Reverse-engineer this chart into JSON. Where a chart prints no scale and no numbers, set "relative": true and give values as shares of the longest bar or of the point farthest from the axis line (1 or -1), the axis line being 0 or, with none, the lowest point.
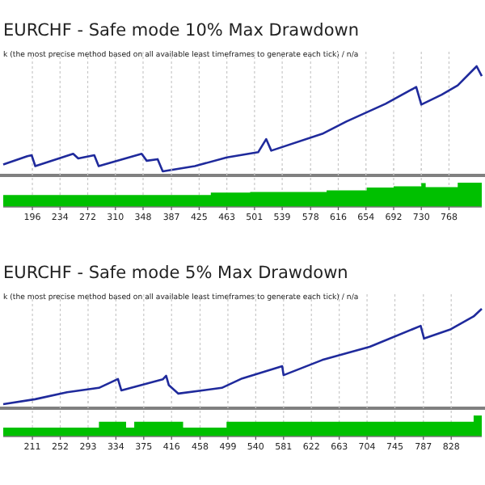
{
  "chart_data": [
    {
      "type": "line",
      "title": "EURCHF - Safe mode 10% Max Drawdown",
      "subtitle": "k (the most precise method based on all available least timeframes to generate each tick) / n/a",
      "relative": true,
      "grid": "x",
      "tick_labels": false,
      "xlim": [
        156,
        813
      ],
      "xticks": [
        196,
        234,
        272,
        310,
        348,
        387,
        425,
        463,
        501,
        539,
        578,
        616,
        654,
        692,
        730,
        768
      ],
      "series": [
        {
          "color": "#1f2a9c",
          "x": [
            156,
            189,
            195,
            200,
            252,
            259,
            281,
            287,
            346,
            353,
            368,
            375,
            419,
            463,
            506,
            517,
            524,
            594,
            627,
            681,
            723,
            730,
            758,
            780,
            806,
            813
          ],
          "values": [
            0.066,
            0.145,
            0.154,
            0.05,
            0.167,
            0.123,
            0.154,
            0.05,
            0.167,
            0.101,
            0.116,
            0,
            0.05,
            0.132,
            0.182,
            0.307,
            0.197,
            0.357,
            0.474,
            0.643,
            0.803,
            0.636,
            0.73,
            0.818,
            1,
            0.906
          ]
        }
      ]
    },
    {
      "type": "area",
      "relative": true,
      "grid": "x",
      "xlim": [
        156,
        813
      ],
      "xticks": [
        196,
        234,
        272,
        310,
        348,
        387,
        425,
        463,
        501,
        539,
        578,
        616,
        654,
        692,
        730,
        768
      ],
      "series": [
        {
          "color": "#00c000",
          "x": [
            156,
            441,
            441,
            495,
            495,
            600,
            600,
            655,
            655,
            692,
            692,
            730,
            730,
            736,
            736,
            780,
            780,
            813
          ],
          "values": [
            0.49,
            0.49,
            0.59,
            0.59,
            0.62,
            0.62,
            0.68,
            0.68,
            0.8,
            0.8,
            0.85,
            0.85,
            0.98,
            0.98,
            0.82,
            0.82,
            1,
            1
          ]
        }
      ]
    },
    {
      "type": "line",
      "title": "EURCHF - Safe mode 5% Max Drawdown",
      "subtitle": "k (the most precise method based on all available least timeframes to generate each tick) / n/a",
      "relative": true,
      "grid": "x",
      "tick_labels": false,
      "xlim": [
        168,
        873
      ],
      "xticks": [
        211,
        252,
        293,
        334,
        375,
        416,
        458,
        499,
        540,
        581,
        622,
        663,
        704,
        745,
        787,
        828
      ],
      "series": [
        {
          "color": "#1f2a9c",
          "x": [
            168,
            215,
            262,
            309,
            337,
            342,
            403,
            408,
            412,
            426,
            490,
            520,
            579,
            581,
            638,
            708,
            783,
            788,
            826,
            861,
            873
          ],
          "values": [
            0,
            0.052,
            0.125,
            0.171,
            0.264,
            0.145,
            0.26,
            0.298,
            0.199,
            0.111,
            0.171,
            0.27,
            0.398,
            0.304,
            0.463,
            0.602,
            0.821,
            0.688,
            0.781,
            0.92,
            1
          ]
        }
      ]
    },
    {
      "type": "area",
      "relative": true,
      "grid": "x",
      "xlim": [
        168,
        873
      ],
      "xticks": [
        211,
        252,
        293,
        334,
        375,
        416,
        458,
        499,
        540,
        581,
        622,
        663,
        704,
        745,
        787,
        828
      ],
      "series": [
        {
          "color": "#00c000",
          "x": [
            168,
            309,
            309,
            349,
            349,
            361,
            361,
            433,
            433,
            497,
            497,
            861,
            861,
            873
          ],
          "values": [
            0.42,
            0.42,
            0.7,
            0.7,
            0.42,
            0.42,
            0.7,
            0.7,
            0.42,
            0.42,
            0.7,
            0.7,
            1,
            1
          ]
        }
      ]
    }
  ]
}
